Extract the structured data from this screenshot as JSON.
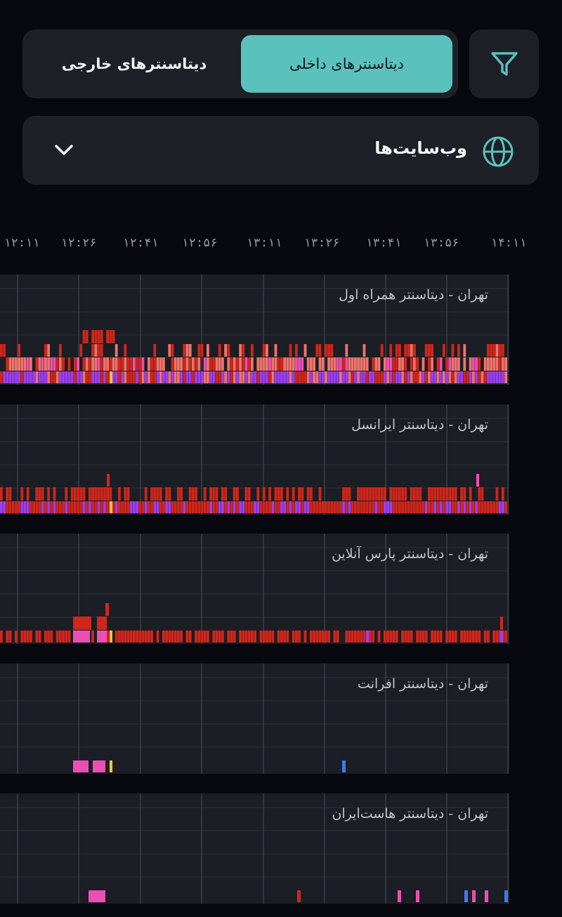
{
  "tabs": {
    "internal": "دیتاسنترهای داخلی",
    "external": "دیتاسنترهای خارجی",
    "active": "internal"
  },
  "filter": {
    "icon": "filter-icon"
  },
  "dropdown": {
    "label": "وب‌سایت‌ها",
    "icon": "globe-icon",
    "chevron": "chevron-down-icon"
  },
  "colors": {
    "accent": "#5bc1bd",
    "panel_bg": "#1b1e25",
    "red": "#d0261b",
    "salmon": "#f0736a",
    "pink": "#ec4fb4",
    "purple": "#9c3ef2",
    "yellow": "#f2c43c",
    "blue": "#3d7be6"
  },
  "time_axis": [
    "۱۲:۱۱",
    "۱۲:۲۶",
    "۱۲:۴۱",
    "۱۲:۵۶",
    "۱۳:۱۱",
    "۱۳:۲۶",
    "۱۳:۴۱",
    "۱۳:۵۶",
    "۱۴:۱۱"
  ],
  "panels": [
    {
      "title": "تهران - دیتاسنتر همراه اول",
      "pattern": "dense"
    },
    {
      "title": "تهران - دیتاسنتر ایرانسل",
      "pattern": "medium"
    },
    {
      "title": "تهران - دیتاسنتر پارس آنلاین",
      "pattern": "light"
    },
    {
      "title": "تهران - دیتاسنتر افرانت",
      "pattern": "sparse"
    },
    {
      "title": "تهران - دیتاسنتر هاست‌ایران",
      "pattern": "sparse2"
    }
  ]
}
